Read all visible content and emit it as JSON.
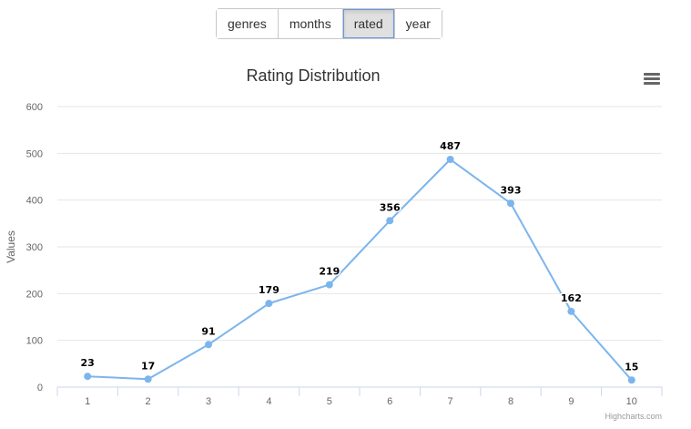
{
  "tabs": [
    {
      "label": "genres",
      "active": false
    },
    {
      "label": "months",
      "active": false
    },
    {
      "label": "rated",
      "active": true
    },
    {
      "label": "year",
      "active": false
    }
  ],
  "chart_data": {
    "type": "line",
    "title": "Rating Distribution",
    "xlabel": "",
    "ylabel": "Values",
    "categories": [
      "1",
      "2",
      "3",
      "4",
      "5",
      "6",
      "7",
      "8",
      "9",
      "10"
    ],
    "series": [
      {
        "values": [
          23,
          17,
          91,
          179,
          219,
          356,
          487,
          393,
          162,
          15
        ],
        "color": "#7cb5ec"
      }
    ],
    "ylim": [
      0,
      600
    ],
    "yticks": [
      0,
      100,
      200,
      300,
      400,
      500,
      600
    ],
    "grid": true,
    "data_labels": true,
    "credits": "Highcharts.com",
    "menu_icon": "hamburger-menu-icon"
  }
}
